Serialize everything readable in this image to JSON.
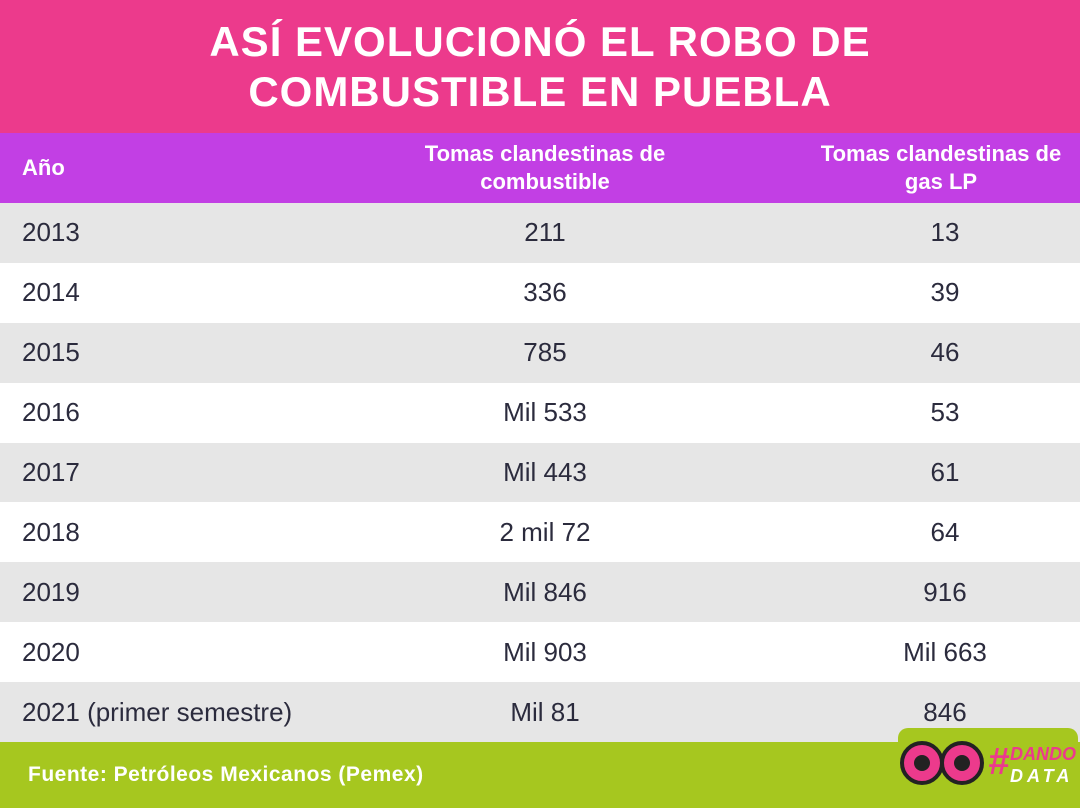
{
  "header": {
    "title": "ASÍ EVOLUCIONÓ EL ROBO DE COMBUSTIBLE EN PUEBLA"
  },
  "table": {
    "columns": [
      "Año",
      "Tomas clandestinas de combustible",
      "Tomas clandestinas de gas LP"
    ],
    "rows": [
      [
        "2013",
        "211",
        "13"
      ],
      [
        "2014",
        "336",
        "39"
      ],
      [
        "2015",
        "785",
        "46"
      ],
      [
        "2016",
        "Mil 533",
        "53"
      ],
      [
        "2017",
        "Mil 443",
        "61"
      ],
      [
        "2018",
        "2 mil 72",
        "64"
      ],
      [
        "2019",
        "Mil 846",
        "916"
      ],
      [
        "2020",
        "Mil 903",
        "Mil 663"
      ],
      [
        "2021 (primer semestre)",
        "Mil 81",
        "846"
      ]
    ]
  },
  "footer": {
    "source": "Fuente: Petróleos Mexicanos (Pemex)"
  },
  "logo": {
    "hash": "#",
    "line1": "DANDO",
    "line2": "DATA"
  }
}
